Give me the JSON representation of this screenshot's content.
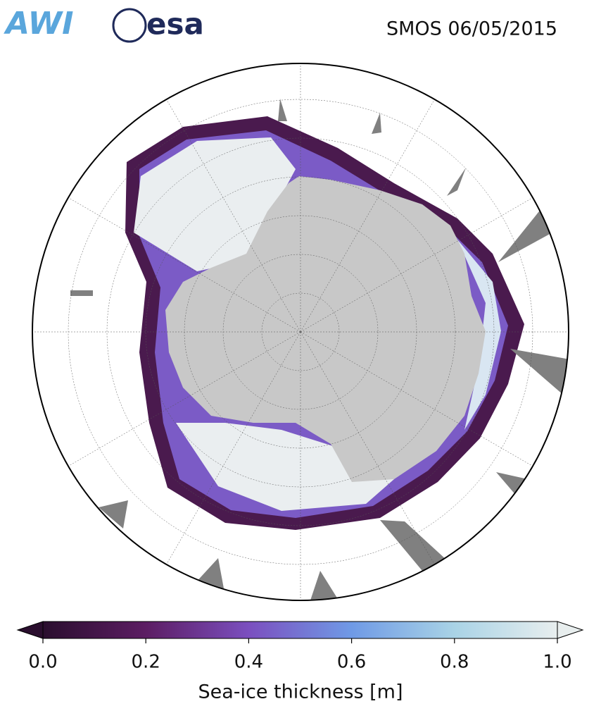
{
  "header": {
    "logos": [
      "AWI",
      "esa"
    ],
    "title": "SMOS 06/05/2015"
  },
  "colorbar": {
    "label": "Sea-ice thickness [m]",
    "lim": [
      0,
      1
    ],
    "ticks": [
      {
        "value": 0,
        "label": "0.0"
      },
      {
        "value": 0.2,
        "label": "0.2"
      },
      {
        "value": 0.4,
        "label": "0.4"
      },
      {
        "value": 0.6,
        "label": "0.6"
      },
      {
        "value": 0.8,
        "label": "0.8"
      },
      {
        "value": 1,
        "label": "1.0"
      }
    ],
    "colors": [
      "#2a0e2e",
      "#5c1d63",
      "#7b4fbf",
      "#6f9ae6",
      "#a9d3e6",
      "#e8eeee"
    ]
  }
}
